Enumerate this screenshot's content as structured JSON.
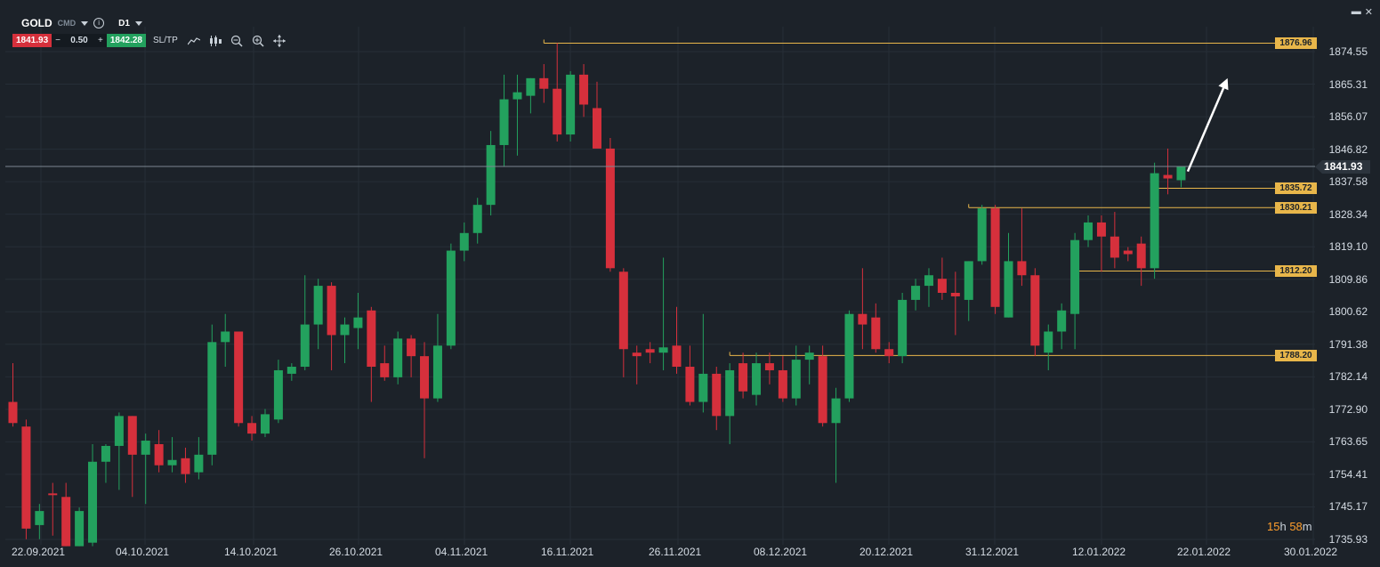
{
  "toolbar": {
    "symbol": "GOLD",
    "symbol_type": "CMD",
    "timeframe": "D1",
    "sell_price": "1841.93",
    "minus": "−",
    "quantity": "0.50",
    "plus": "+",
    "buy_price": "1842.28",
    "sltp": "SL/TP",
    "icons": [
      "line-chart-icon",
      "candles-icon",
      "zoom-out-icon",
      "zoom-in-icon",
      "crosshair-icon"
    ]
  },
  "window": {
    "icons": [
      "maximize-icon",
      "close-icon"
    ],
    "close_glyph": "✕",
    "max_glyph": "▬"
  },
  "y_axis": [
    "1874.55",
    "1865.31",
    "1856.07",
    "1846.82",
    "1837.58",
    "1828.34",
    "1819.10",
    "1809.86",
    "1800.62",
    "1791.38",
    "1782.14",
    "1772.90",
    "1763.65",
    "1754.41",
    "1745.17",
    "1735.93"
  ],
  "x_axis": [
    "22.09.2021",
    "04.10.2021",
    "14.10.2021",
    "26.10.2021",
    "04.11.2021",
    "16.11.2021",
    "26.11.2021",
    "08.12.2021",
    "20.12.2021",
    "31.12.2021",
    "12.01.2022",
    "22.01.2022",
    "30.01.2022"
  ],
  "current_price": "1841.93",
  "level_labels": [
    "1876.96",
    "1835.72",
    "1830.21",
    "1812.20",
    "1788.20"
  ],
  "timer": {
    "hours": "15",
    "h": "h",
    "minutes": "58",
    "m": "m"
  },
  "colors": {
    "up": "#23a15e",
    "down": "#d6303c",
    "level": "#e8b64a",
    "bg": "#1c2229",
    "grid": "#262e37"
  },
  "chart_data": {
    "type": "candlestick",
    "symbol": "GOLD",
    "timeframe": "D1",
    "ylim": [
      1733.6,
      1880.0
    ],
    "candles": [
      {
        "o": 1775.0,
        "h": 1786.0,
        "l": 1768.0,
        "c": 1769.0
      },
      {
        "o": 1768.0,
        "h": 1770.0,
        "l": 1736.0,
        "c": 1739.0
      },
      {
        "o": 1740.0,
        "h": 1746.0,
        "l": 1736.0,
        "c": 1744.0
      },
      {
        "o": 1749.0,
        "h": 1752.0,
        "l": 1737.0,
        "c": 1748.5
      },
      {
        "o": 1748.0,
        "h": 1752.0,
        "l": 1734.0,
        "c": 1734.0
      },
      {
        "o": 1734.0,
        "h": 1745.0,
        "l": 1734.0,
        "c": 1744.0
      },
      {
        "o": 1735.0,
        "h": 1763.0,
        "l": 1734.0,
        "c": 1758.0
      },
      {
        "o": 1758.0,
        "h": 1763.0,
        "l": 1752.0,
        "c": 1762.5
      },
      {
        "o": 1762.5,
        "h": 1772.0,
        "l": 1750.0,
        "c": 1771.0
      },
      {
        "o": 1771.0,
        "h": 1771.0,
        "l": 1748.0,
        "c": 1760.0
      },
      {
        "o": 1760.0,
        "h": 1766.0,
        "l": 1746.0,
        "c": 1764.0
      },
      {
        "o": 1763.0,
        "h": 1767.0,
        "l": 1755.0,
        "c": 1757.0
      },
      {
        "o": 1757.0,
        "h": 1765.0,
        "l": 1755.0,
        "c": 1758.5
      },
      {
        "o": 1759.0,
        "h": 1762.0,
        "l": 1752.0,
        "c": 1754.5
      },
      {
        "o": 1755.0,
        "h": 1765.0,
        "l": 1753.0,
        "c": 1760.0
      },
      {
        "o": 1760.0,
        "h": 1797.0,
        "l": 1757.0,
        "c": 1792.0
      },
      {
        "o": 1792.0,
        "h": 1800.0,
        "l": 1785.0,
        "c": 1795.0
      },
      {
        "o": 1795.0,
        "h": 1795.0,
        "l": 1768.0,
        "c": 1769.0
      },
      {
        "o": 1769.0,
        "h": 1771.0,
        "l": 1764.0,
        "c": 1766.0
      },
      {
        "o": 1766.0,
        "h": 1773.0,
        "l": 1765.0,
        "c": 1771.5
      },
      {
        "o": 1770.0,
        "h": 1787.0,
        "l": 1769.0,
        "c": 1784.0
      },
      {
        "o": 1783.0,
        "h": 1786.0,
        "l": 1781.0,
        "c": 1785.0
      },
      {
        "o": 1785.0,
        "h": 1811.0,
        "l": 1784.0,
        "c": 1797.0
      },
      {
        "o": 1797.0,
        "h": 1810.0,
        "l": 1790.0,
        "c": 1808.0
      },
      {
        "o": 1808.0,
        "h": 1809.0,
        "l": 1784.0,
        "c": 1794.0
      },
      {
        "o": 1794.0,
        "h": 1799.0,
        "l": 1786.0,
        "c": 1797.0
      },
      {
        "o": 1796.0,
        "h": 1806.0,
        "l": 1790.0,
        "c": 1799.0
      },
      {
        "o": 1801.0,
        "h": 1802.0,
        "l": 1775.0,
        "c": 1785.0
      },
      {
        "o": 1786.0,
        "h": 1791.0,
        "l": 1781.0,
        "c": 1782.0
      },
      {
        "o": 1782.0,
        "h": 1795.0,
        "l": 1780.0,
        "c": 1793.0
      },
      {
        "o": 1793.0,
        "h": 1794.0,
        "l": 1782.0,
        "c": 1788.0
      },
      {
        "o": 1788.0,
        "h": 1792.0,
        "l": 1759.0,
        "c": 1776.0
      },
      {
        "o": 1776.0,
        "h": 1800.0,
        "l": 1775.0,
        "c": 1791.0
      },
      {
        "o": 1791.0,
        "h": 1820.0,
        "l": 1790.0,
        "c": 1818.0
      },
      {
        "o": 1818.0,
        "h": 1826.0,
        "l": 1815.0,
        "c": 1823.0
      },
      {
        "o": 1823.0,
        "h": 1833.0,
        "l": 1820.0,
        "c": 1831.0
      },
      {
        "o": 1831.0,
        "h": 1852.0,
        "l": 1828.0,
        "c": 1848.0
      },
      {
        "o": 1848.0,
        "h": 1868.0,
        "l": 1842.0,
        "c": 1861.0
      },
      {
        "o": 1861.0,
        "h": 1868.0,
        "l": 1845.0,
        "c": 1863.0
      },
      {
        "o": 1862.0,
        "h": 1867.0,
        "l": 1857.0,
        "c": 1867.0
      },
      {
        "o": 1867.0,
        "h": 1871.0,
        "l": 1860.0,
        "c": 1864.0
      },
      {
        "o": 1864.0,
        "h": 1877.0,
        "l": 1849.0,
        "c": 1851.0
      },
      {
        "o": 1851.0,
        "h": 1869.0,
        "l": 1849.0,
        "c": 1868.0
      },
      {
        "o": 1868.0,
        "h": 1871.0,
        "l": 1856.0,
        "c": 1859.5
      },
      {
        "o": 1858.5,
        "h": 1866.0,
        "l": 1848.0,
        "c": 1847.0
      },
      {
        "o": 1847.0,
        "h": 1850.0,
        "l": 1812.0,
        "c": 1813.0
      },
      {
        "o": 1812.0,
        "h": 1813.0,
        "l": 1782.0,
        "c": 1790.0
      },
      {
        "o": 1789.0,
        "h": 1791.0,
        "l": 1780.0,
        "c": 1788.0
      },
      {
        "o": 1790.0,
        "h": 1792.0,
        "l": 1786.0,
        "c": 1789.0
      },
      {
        "o": 1789.0,
        "h": 1816.0,
        "l": 1784.0,
        "c": 1790.5
      },
      {
        "o": 1791.0,
        "h": 1802.0,
        "l": 1783.0,
        "c": 1785.0
      },
      {
        "o": 1785.0,
        "h": 1791.0,
        "l": 1774.0,
        "c": 1775.0
      },
      {
        "o": 1775.0,
        "h": 1800.0,
        "l": 1772.0,
        "c": 1783.0
      },
      {
        "o": 1783.0,
        "h": 1785.0,
        "l": 1767.0,
        "c": 1771.0
      },
      {
        "o": 1771.0,
        "h": 1786.0,
        "l": 1763.0,
        "c": 1784.0
      },
      {
        "o": 1786.0,
        "h": 1789.0,
        "l": 1776.0,
        "c": 1778.0
      },
      {
        "o": 1777.0,
        "h": 1789.0,
        "l": 1774.0,
        "c": 1786.0
      },
      {
        "o": 1786.0,
        "h": 1789.0,
        "l": 1780.0,
        "c": 1784.0
      },
      {
        "o": 1784.0,
        "h": 1788.0,
        "l": 1775.0,
        "c": 1776.0
      },
      {
        "o": 1776.0,
        "h": 1791.0,
        "l": 1774.0,
        "c": 1787.0
      },
      {
        "o": 1787.0,
        "h": 1791.0,
        "l": 1780.0,
        "c": 1789.0
      },
      {
        "o": 1788.0,
        "h": 1791.0,
        "l": 1768.0,
        "c": 1769.0
      },
      {
        "o": 1769.0,
        "h": 1779.0,
        "l": 1752.0,
        "c": 1776.0
      },
      {
        "o": 1776.0,
        "h": 1801.0,
        "l": 1775.0,
        "c": 1800.0
      },
      {
        "o": 1800.0,
        "h": 1813.0,
        "l": 1790.0,
        "c": 1797.0
      },
      {
        "o": 1799.0,
        "h": 1803.0,
        "l": 1789.0,
        "c": 1790.0
      },
      {
        "o": 1790.0,
        "h": 1792.0,
        "l": 1786.0,
        "c": 1788.0
      },
      {
        "o": 1788.0,
        "h": 1806.0,
        "l": 1786.0,
        "c": 1804.0
      },
      {
        "o": 1804.0,
        "h": 1810.0,
        "l": 1801.0,
        "c": 1808.0
      },
      {
        "o": 1808.0,
        "h": 1813.0,
        "l": 1802.0,
        "c": 1811.0
      },
      {
        "o": 1810.0,
        "h": 1816.0,
        "l": 1804.0,
        "c": 1806.0
      },
      {
        "o": 1806.0,
        "h": 1812.0,
        "l": 1794.0,
        "c": 1805.0
      },
      {
        "o": 1804.0,
        "h": 1815.0,
        "l": 1798.0,
        "c": 1815.0
      },
      {
        "o": 1815.0,
        "h": 1831.0,
        "l": 1814.0,
        "c": 1830.0
      },
      {
        "o": 1830.0,
        "h": 1831.0,
        "l": 1800.0,
        "c": 1802.0
      },
      {
        "o": 1799.0,
        "h": 1823.0,
        "l": 1799.0,
        "c": 1815.0
      },
      {
        "o": 1815.0,
        "h": 1830.0,
        "l": 1808.0,
        "c": 1811.0
      },
      {
        "o": 1811.0,
        "h": 1813.0,
        "l": 1788.0,
        "c": 1791.0
      },
      {
        "o": 1789.0,
        "h": 1797.0,
        "l": 1784.0,
        "c": 1795.0
      },
      {
        "o": 1795.0,
        "h": 1803.0,
        "l": 1790.0,
        "c": 1801.0
      },
      {
        "o": 1800.0,
        "h": 1823.0,
        "l": 1790.0,
        "c": 1821.0
      },
      {
        "o": 1821.0,
        "h": 1828.0,
        "l": 1819.0,
        "c": 1826.0
      },
      {
        "o": 1826.0,
        "h": 1828.0,
        "l": 1812.0,
        "c": 1822.0
      },
      {
        "o": 1822.0,
        "h": 1829.0,
        "l": 1813.0,
        "c": 1816.0
      },
      {
        "o": 1818.0,
        "h": 1819.0,
        "l": 1815.0,
        "c": 1817.0
      },
      {
        "o": 1820.0,
        "h": 1822.0,
        "l": 1808.0,
        "c": 1813.0
      },
      {
        "o": 1813.0,
        "h": 1843.0,
        "l": 1810.0,
        "c": 1840.0
      },
      {
        "o": 1839.5,
        "h": 1847.0,
        "l": 1834.0,
        "c": 1838.5
      },
      {
        "o": 1838.0,
        "h": 1842.0,
        "l": 1836.0,
        "c": 1842.0
      }
    ],
    "levels": [
      {
        "price": 1876.96,
        "label": "1876.96",
        "from_candle": 40
      },
      {
        "price": 1835.72,
        "label": "1835.72",
        "from_candle": 86
      },
      {
        "price": 1830.21,
        "label": "1830.21",
        "from_candle": 72
      },
      {
        "price": 1812.2,
        "label": "1812.20",
        "from_candle": 80
      },
      {
        "price": 1788.2,
        "label": "1788.20",
        "from_candle": 54
      }
    ],
    "current_price": 1841.93,
    "arrow": {
      "from_candle": 88.5,
      "from_price": 1840.5,
      "to_candle": 91.5,
      "to_price": 1867.0
    }
  }
}
